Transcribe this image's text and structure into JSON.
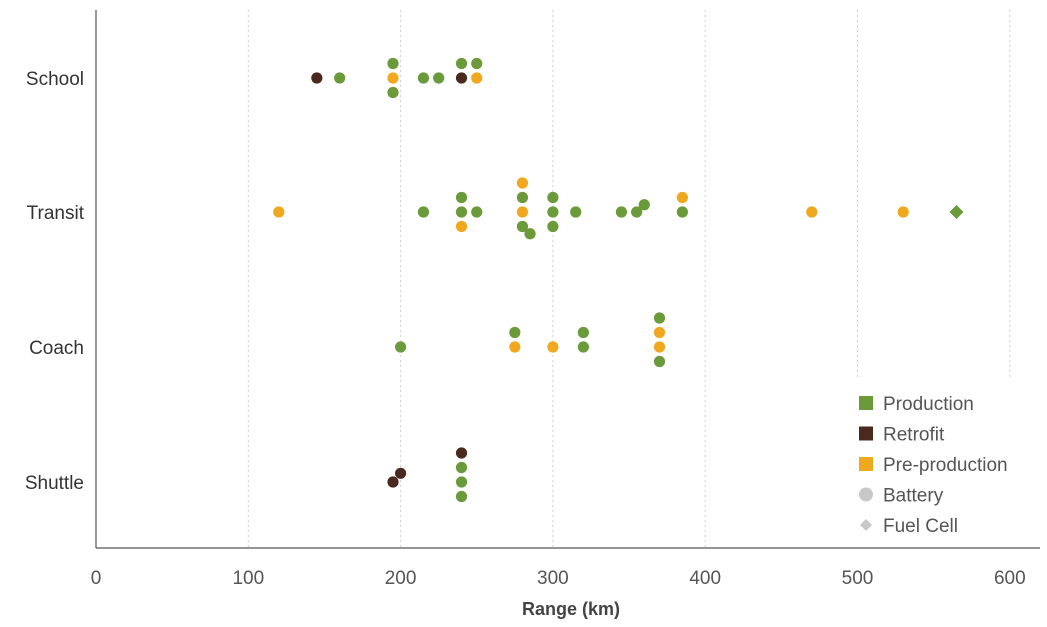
{
  "chart_data": {
    "type": "scatter",
    "xlabel": "Range (km)",
    "ylabel": "",
    "xlim": [
      0,
      620
    ],
    "x_ticks": [
      0,
      100,
      200,
      300,
      400,
      500,
      600
    ],
    "x_tick_labels": [
      "0",
      "100",
      "200",
      "300",
      "400",
      "500",
      "600"
    ],
    "categories": [
      "School",
      "Transit",
      "Coach",
      "Shuttle"
    ],
    "grid": "vertical dotted",
    "legend_position": "bottom-right",
    "colors": {
      "Production": "#6a9a3a",
      "Retrofit": "#4a2a1f",
      "Pre-production": "#f0a91e",
      "Battery": "#c8c8c8",
      "Fuel Cell": "#c8c8c8"
    },
    "legend": [
      {
        "label": "Production",
        "marker": "square",
        "color": "#6a9a3a"
      },
      {
        "label": "Retrofit",
        "marker": "square",
        "color": "#4a2a1f"
      },
      {
        "label": "Pre-production",
        "marker": "square",
        "color": "#f0a91e"
      },
      {
        "label": "Battery",
        "marker": "circle",
        "color": "#c8c8c8"
      },
      {
        "label": "Fuel Cell",
        "marker": "diamond",
        "color": "#c8c8c8"
      }
    ],
    "series": [
      {
        "name": "Production",
        "points": [
          {
            "category": "School",
            "x": 160,
            "stack": 0
          },
          {
            "category": "School",
            "x": 195,
            "stack": 1
          },
          {
            "category": "School",
            "x": 195,
            "stack": -1
          },
          {
            "category": "School",
            "x": 215,
            "stack": 0
          },
          {
            "category": "School",
            "x": 225,
            "stack": 0
          },
          {
            "category": "School",
            "x": 240,
            "stack": 1
          },
          {
            "category": "School",
            "x": 250,
            "stack": 1
          },
          {
            "category": "Transit",
            "x": 215,
            "stack": 0
          },
          {
            "category": "Transit",
            "x": 240,
            "stack": 1
          },
          {
            "category": "Transit",
            "x": 240,
            "stack": 0
          },
          {
            "category": "Transit",
            "x": 250,
            "stack": 0
          },
          {
            "category": "Transit",
            "x": 280,
            "stack": 1
          },
          {
            "category": "Transit",
            "x": 280,
            "stack": -1
          },
          {
            "category": "Transit",
            "x": 285,
            "stack": -1.5
          },
          {
            "category": "Transit",
            "x": 300,
            "stack": 1
          },
          {
            "category": "Transit",
            "x": 300,
            "stack": 0
          },
          {
            "category": "Transit",
            "x": 300,
            "stack": -1
          },
          {
            "category": "Transit",
            "x": 315,
            "stack": 0
          },
          {
            "category": "Transit",
            "x": 345,
            "stack": 0
          },
          {
            "category": "Transit",
            "x": 355,
            "stack": 0
          },
          {
            "category": "Transit",
            "x": 360,
            "stack": 0.5
          },
          {
            "category": "Transit",
            "x": 385,
            "stack": 0
          },
          {
            "category": "Transit",
            "x": 565,
            "stack": 0,
            "shape": "diamond"
          },
          {
            "category": "Coach",
            "x": 200,
            "stack": 0
          },
          {
            "category": "Coach",
            "x": 275,
            "stack": 1
          },
          {
            "category": "Coach",
            "x": 320,
            "stack": 1
          },
          {
            "category": "Coach",
            "x": 320,
            "stack": 0
          },
          {
            "category": "Coach",
            "x": 370,
            "stack": 2
          },
          {
            "category": "Coach",
            "x": 370,
            "stack": -1
          },
          {
            "category": "Shuttle",
            "x": 240,
            "stack": 1
          },
          {
            "category": "Shuttle",
            "x": 240,
            "stack": 0
          },
          {
            "category": "Shuttle",
            "x": 240,
            "stack": -1
          }
        ]
      },
      {
        "name": "Retrofit",
        "points": [
          {
            "category": "School",
            "x": 145,
            "stack": 0
          },
          {
            "category": "School",
            "x": 240,
            "stack": 0
          },
          {
            "category": "Shuttle",
            "x": 240,
            "stack": 2
          },
          {
            "category": "Shuttle",
            "x": 200,
            "stack": 0.6
          },
          {
            "category": "Shuttle",
            "x": 195,
            "stack": 0
          }
        ]
      },
      {
        "name": "Pre-production",
        "points": [
          {
            "category": "School",
            "x": 195,
            "stack": 0
          },
          {
            "category": "School",
            "x": 250,
            "stack": 0
          },
          {
            "category": "Transit",
            "x": 120,
            "stack": 0
          },
          {
            "category": "Transit",
            "x": 240,
            "stack": -1
          },
          {
            "category": "Transit",
            "x": 280,
            "stack": 2
          },
          {
            "category": "Transit",
            "x": 280,
            "stack": 0
          },
          {
            "category": "Transit",
            "x": 385,
            "stack": 1
          },
          {
            "category": "Transit",
            "x": 470,
            "stack": 0
          },
          {
            "category": "Transit",
            "x": 530,
            "stack": 0
          },
          {
            "category": "Coach",
            "x": 275,
            "stack": 0
          },
          {
            "category": "Coach",
            "x": 300,
            "stack": 0
          },
          {
            "category": "Coach",
            "x": 370,
            "stack": 1
          },
          {
            "category": "Coach",
            "x": 370,
            "stack": 0
          }
        ]
      }
    ]
  }
}
